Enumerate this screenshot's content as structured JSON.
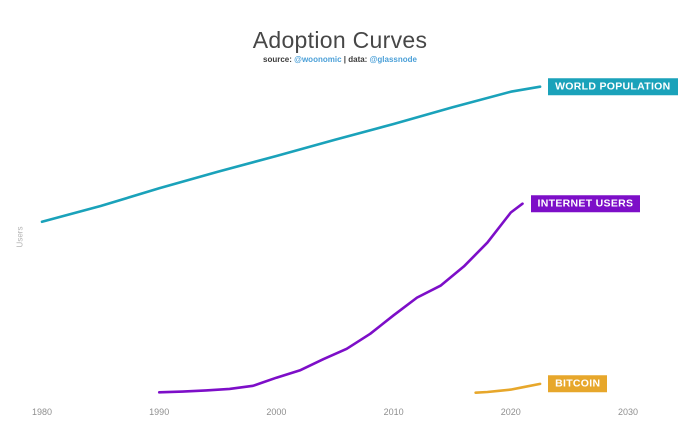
{
  "chart_data": {
    "type": "line",
    "title": "Adoption Curves",
    "subtitle": {
      "source_label": "source:",
      "source_handle": "@woonomic",
      "separator": "|",
      "data_label": "data:",
      "data_handle": "@glassnode"
    },
    "xlabel": "",
    "ylabel": "Users",
    "unit": "billions of users",
    "grid": false,
    "x_ticks": [
      1980,
      1990,
      2000,
      2010,
      2020,
      2030
    ],
    "xlim": [
      1976.4,
      2034.4
    ],
    "ylim": [
      0,
      9.3
    ],
    "legend_position": "end-of-line labels, right side",
    "series": [
      {
        "id": "world-population",
        "name": "WORLD POPULATION",
        "color": "#1aa2ba",
        "x": [
          1980,
          1985,
          1990,
          1995,
          2000,
          2005,
          2010,
          2015,
          2020,
          2022.5
        ],
        "y": [
          4.46,
          4.87,
          5.33,
          5.76,
          6.17,
          6.59,
          7.0,
          7.43,
          7.84,
          7.97
        ]
      },
      {
        "id": "internet-users",
        "name": "INTERNET USERS",
        "color": "#7d0ec8",
        "x": [
          1990,
          1992,
          1994,
          1996,
          1998,
          2000,
          2002,
          2004,
          2006,
          2008,
          2010,
          2012,
          2014,
          2016,
          2018,
          2020,
          2021
        ],
        "y": [
          0.03,
          0.05,
          0.08,
          0.12,
          0.2,
          0.41,
          0.6,
          0.89,
          1.16,
          1.55,
          2.03,
          2.49,
          2.8,
          3.3,
          3.92,
          4.7,
          4.93
        ]
      },
      {
        "id": "bitcoin",
        "name": "BITCOIN",
        "color": "#e7a72b",
        "x": [
          2017,
          2018,
          2019,
          2020,
          2021,
          2022.5
        ],
        "y": [
          0.02,
          0.04,
          0.07,
          0.1,
          0.16,
          0.25
        ]
      }
    ]
  }
}
